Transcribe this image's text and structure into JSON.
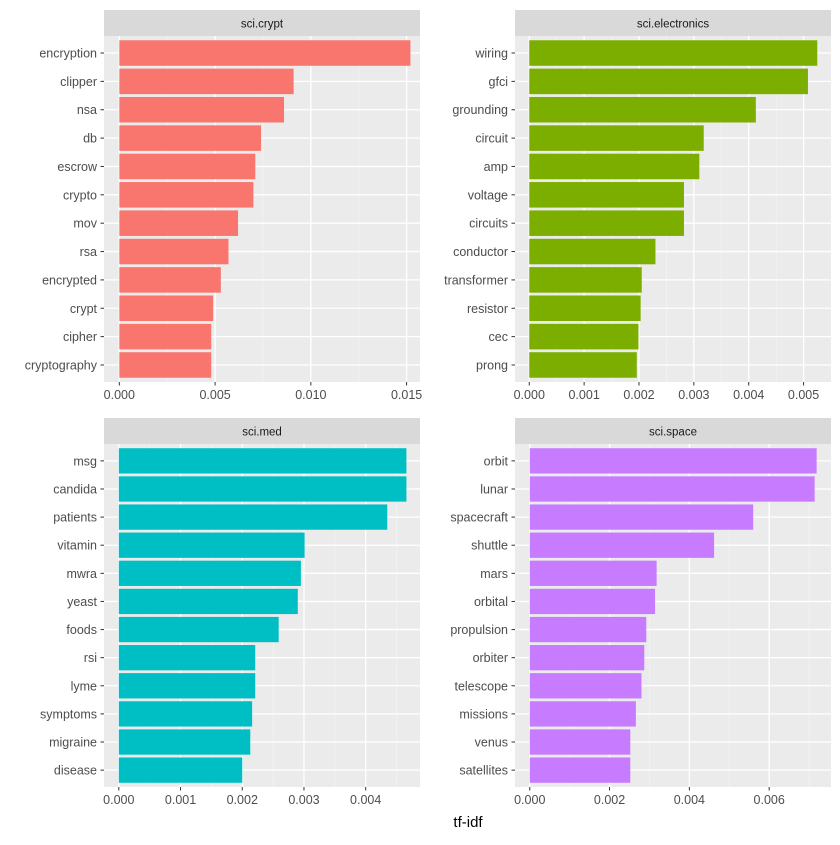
{
  "chart_data": {
    "type": "bar",
    "orientation": "horizontal",
    "xlabel": "tf-idf",
    "grid": true,
    "legend": "none",
    "panels": [
      {
        "title": "sci.crypt",
        "color": "#F8766D",
        "xlim": [
          -0.0008,
          0.0157
        ],
        "ticks": [
          0.0,
          0.005,
          0.01,
          0.015
        ],
        "tick_labels": [
          "0.000",
          "0.005",
          "0.010",
          "0.015"
        ],
        "categories": [
          "encryption",
          "clipper",
          "nsa",
          "db",
          "escrow",
          "crypto",
          "mov",
          "rsa",
          "encrypted",
          "crypt",
          "cipher",
          "cryptography"
        ],
        "values": [
          0.0152,
          0.0091,
          0.0086,
          0.0074,
          0.0071,
          0.007,
          0.0062,
          0.0057,
          0.0053,
          0.0049,
          0.0048,
          0.0048
        ]
      },
      {
        "title": "sci.electronics",
        "color": "#7CAE00",
        "xlim": [
          -0.00026,
          0.0055
        ],
        "ticks": [
          0.0,
          0.001,
          0.002,
          0.003,
          0.004,
          0.005
        ],
        "tick_labels": [
          "0.000",
          "0.001",
          "0.002",
          "0.003",
          "0.004",
          "0.005"
        ],
        "categories": [
          "wiring",
          "gfci",
          "grounding",
          "circuit",
          "amp",
          "voltage",
          "circuits",
          "conductor",
          "transformer",
          "resistor",
          "cec",
          "prong"
        ],
        "values": [
          0.00525,
          0.00508,
          0.00413,
          0.00318,
          0.0031,
          0.00282,
          0.00282,
          0.0023,
          0.00205,
          0.00203,
          0.00199,
          0.00196
        ]
      },
      {
        "title": "sci.med",
        "color": "#00BFC4",
        "xlim": [
          -0.00024,
          0.00488
        ],
        "ticks": [
          0.0,
          0.001,
          0.002,
          0.003,
          0.004
        ],
        "tick_labels": [
          "0.000",
          "0.001",
          "0.002",
          "0.003",
          "0.004"
        ],
        "categories": [
          "msg",
          "candida",
          "patients",
          "vitamin",
          "mwra",
          "yeast",
          "foods",
          "rsi",
          "lyme",
          "symptoms",
          "migraine",
          "disease"
        ],
        "values": [
          0.00466,
          0.00466,
          0.00435,
          0.00301,
          0.00295,
          0.0029,
          0.00259,
          0.00221,
          0.00221,
          0.00216,
          0.00213,
          0.002
        ]
      },
      {
        "title": "sci.space",
        "color": "#C77CFF",
        "xlim": [
          -0.00037,
          0.00755
        ],
        "ticks": [
          0.0,
          0.002,
          0.004,
          0.006
        ],
        "tick_labels": [
          "0.000",
          "0.002",
          "0.004",
          "0.006"
        ],
        "categories": [
          "orbit",
          "lunar",
          "spacecraft",
          "shuttle",
          "mars",
          "orbital",
          "propulsion",
          "orbiter",
          "telescope",
          "missions",
          "venus",
          "satellites"
        ],
        "values": [
          0.00719,
          0.00714,
          0.0056,
          0.00462,
          0.00318,
          0.00314,
          0.00292,
          0.00287,
          0.0028,
          0.00266,
          0.00252,
          0.00252
        ]
      }
    ]
  }
}
